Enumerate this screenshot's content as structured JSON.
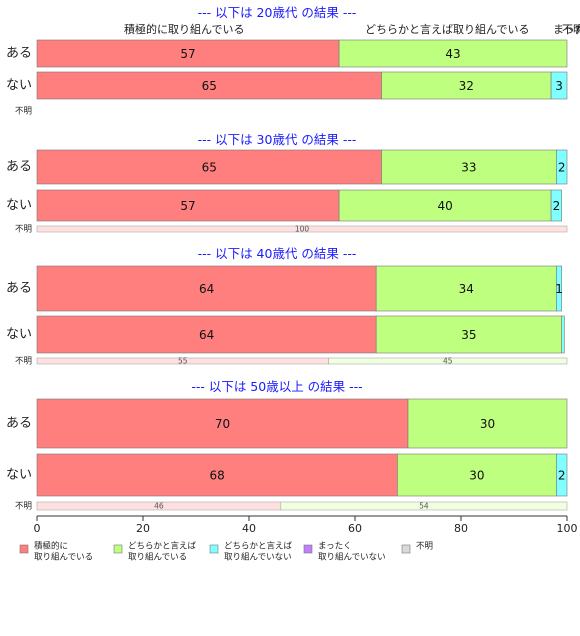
{
  "chart_data": {
    "type": "bar",
    "orientation": "horizontal",
    "stacked": true,
    "xlim": [
      0,
      100
    ],
    "x_ticks": [
      "0",
      "20",
      "40",
      "60",
      "80",
      "100"
    ],
    "row_labels": [
      "ある",
      "ない"
    ],
    "unknown_label": "不明",
    "top_labels": [
      "積極的に取り組んでいる",
      "どちらかと言えば取り組んでいる",
      "まったく",
      "不明"
    ],
    "legend": {
      "placement": "bottom",
      "items": [
        {
          "line1": "積極的に",
          "line2": "取り組んでいる",
          "color": "#ff7f7f"
        },
        {
          "line1": "どちらかと言えば",
          "line2": "取り組んでいる",
          "color": "#bfff7f"
        },
        {
          "line1": "どちらかと言えば",
          "line2": "取り組んでいない",
          "color": "#7fffff"
        },
        {
          "line1": "まったく",
          "line2": "取り組んでいない",
          "color": "#bf7fff"
        },
        {
          "line1": "不明",
          "line2": "",
          "color": "#d9d9d9"
        }
      ]
    },
    "groups": [
      {
        "title": "--- 以下は 20歳代 の結果 ---",
        "bars": [
          {
            "label": "ある",
            "values": [
              57,
              43,
              0,
              0,
              0
            ],
            "labels": [
              "57",
              "43",
              "",
              "",
              ""
            ]
          },
          {
            "label": "ない",
            "values": [
              65,
              32,
              3,
              0,
              0
            ],
            "labels": [
              "65",
              "32",
              "3",
              "",
              ""
            ]
          }
        ],
        "unknown": {
          "values": [],
          "labels": []
        }
      },
      {
        "title": "--- 以下は 30歳代 の結果 ---",
        "bars": [
          {
            "label": "ある",
            "values": [
              65,
              33,
              2,
              0,
              0
            ],
            "labels": [
              "65",
              "33",
              "2",
              "",
              ""
            ]
          },
          {
            "label": "ない",
            "values": [
              57,
              40,
              2,
              0,
              0
            ],
            "labels": [
              "57",
              "40",
              "2",
              "",
              ""
            ]
          }
        ],
        "unknown": {
          "values": [
            100,
            0,
            0,
            0,
            0
          ],
          "labels": [
            "100",
            "",
            "",
            "",
            ""
          ]
        }
      },
      {
        "title": "--- 以下は 40歳代 の結果 ---",
        "bars": [
          {
            "label": "ある",
            "values": [
              64,
              34,
              1,
              0,
              0
            ],
            "labels": [
              "64",
              "34",
              "1",
              "",
              ""
            ]
          },
          {
            "label": "ない",
            "values": [
              64,
              35,
              0.5,
              0,
              0
            ],
            "labels": [
              "64",
              "35",
              "",
              "",
              ""
            ]
          }
        ],
        "unknown": {
          "values": [
            55,
            45,
            0,
            0,
            0
          ],
          "labels": [
            "55",
            "45",
            "",
            "",
            ""
          ]
        }
      },
      {
        "title": "--- 以下は 50歳以上 の結果 ---",
        "bars": [
          {
            "label": "ある",
            "values": [
              70,
              30,
              0,
              0,
              0
            ],
            "labels": [
              "70",
              "30",
              "",
              "",
              ""
            ]
          },
          {
            "label": "ない",
            "values": [
              68,
              30,
              2,
              0,
              0
            ],
            "labels": [
              "68",
              "30",
              "2",
              "",
              ""
            ]
          }
        ],
        "unknown": {
          "values": [
            46,
            54,
            0,
            0,
            0
          ],
          "labels": [
            "46",
            "54",
            "",
            "",
            ""
          ]
        }
      }
    ]
  }
}
